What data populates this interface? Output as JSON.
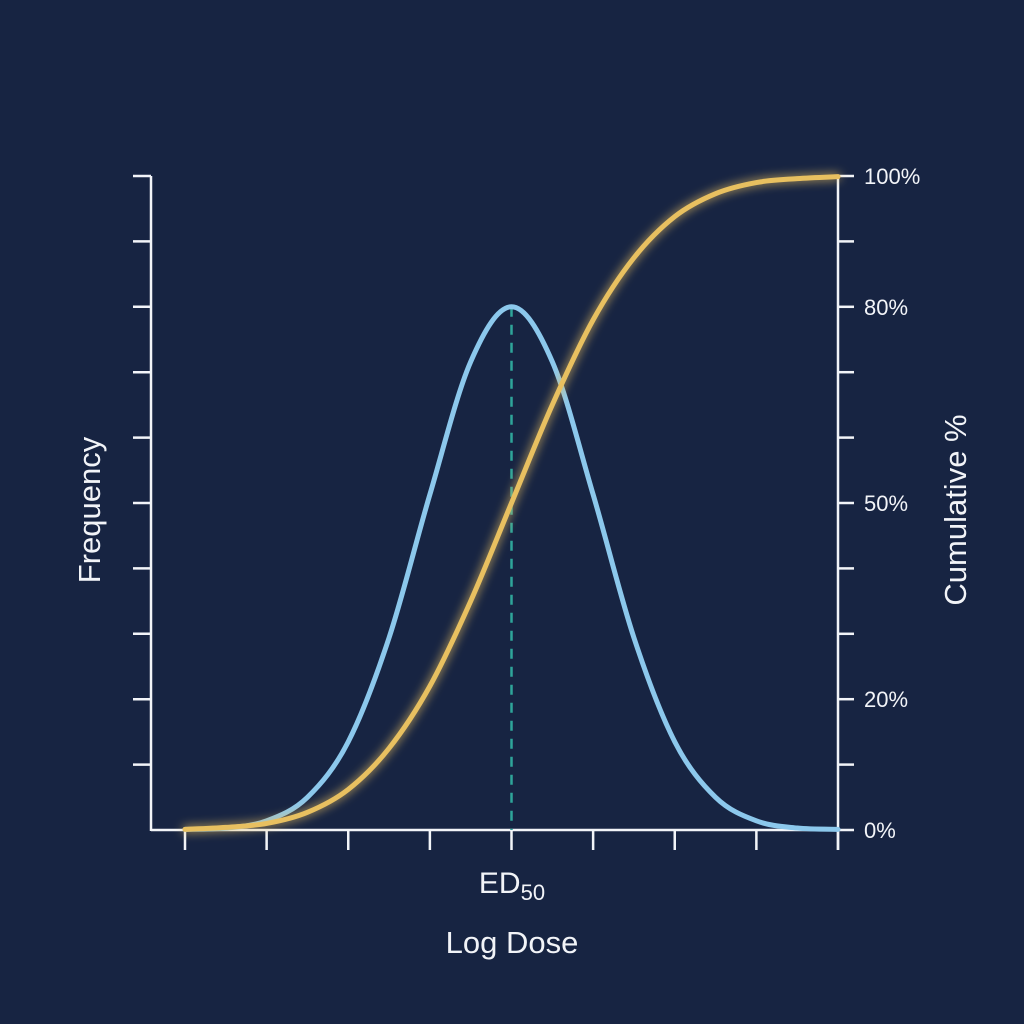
{
  "chart_data": {
    "type": "line",
    "title": "",
    "xlabel": "Log Dose",
    "ylabel_left": "Frequency",
    "ylabel_right": "Cumulative %",
    "x_annotation": {
      "label_main": "ED",
      "label_sub": "50",
      "x": 0,
      "style": "dashed vertical line"
    },
    "x": [
      -4,
      -3.5,
      -3,
      -2.5,
      -2,
      -1.5,
      -1,
      -0.5,
      0,
      0.5,
      1,
      1.5,
      2,
      2.5,
      3,
      3.5,
      4
    ],
    "xlim": [
      -4,
      4
    ],
    "x_tick_count": 9,
    "left_ylim": [
      0,
      1
    ],
    "left_tick_count": 11,
    "right_ylim": [
      0,
      100
    ],
    "right_tick_count": 11,
    "right_tick_labels": [
      {
        "value": 100,
        "label": "100%"
      },
      {
        "value": 80,
        "label": "80%"
      },
      {
        "value": 50,
        "label": "50%"
      },
      {
        "value": 20,
        "label": "20%"
      },
      {
        "value": 0,
        "label": "0%"
      }
    ],
    "series": [
      {
        "axis": "left",
        "color": "#8cc8ec",
        "values": [
          0.001,
          0.003,
          0.014,
          0.05,
          0.135,
          0.294,
          0.513,
          0.716,
          0.8,
          0.716,
          0.513,
          0.294,
          0.135,
          0.05,
          0.014,
          0.003,
          0.001
        ]
      },
      {
        "axis": "right",
        "color": "#e8c060",
        "glow": true,
        "values": [
          0.1,
          0.4,
          1.0,
          2.7,
          6.2,
          12.5,
          22,
          35,
          50,
          65,
          78,
          87.5,
          93.8,
          97.3,
          99,
          99.6,
          99.9
        ]
      }
    ],
    "grid": false,
    "legend": "none"
  },
  "colors": {
    "background": "#172442",
    "axis": "#f2f4f8",
    "annotation_line": "#2fa59a"
  }
}
